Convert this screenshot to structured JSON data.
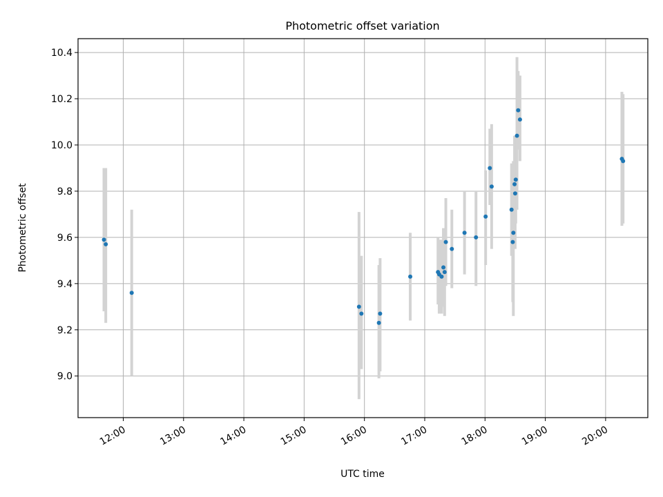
{
  "chart_data": {
    "type": "scatter",
    "title": "Photometric offset variation",
    "xlabel": "UTC time",
    "ylabel": "Photometric offset",
    "grid": true,
    "xlim": [
      11.25,
      20.7
    ],
    "ylim": [
      8.82,
      10.46
    ],
    "x_ticks": [
      {
        "value": 12,
        "label": "12:00"
      },
      {
        "value": 13,
        "label": "13:00"
      },
      {
        "value": 14,
        "label": "14:00"
      },
      {
        "value": 15,
        "label": "15:00"
      },
      {
        "value": 16,
        "label": "16:00"
      },
      {
        "value": 17,
        "label": "17:00"
      },
      {
        "value": 18,
        "label": "18:00"
      },
      {
        "value": 19,
        "label": "19:00"
      },
      {
        "value": 20,
        "label": "20:00"
      }
    ],
    "y_ticks": [
      {
        "value": 9.0,
        "label": "9.0"
      },
      {
        "value": 9.2,
        "label": "9.2"
      },
      {
        "value": 9.4,
        "label": "9.4"
      },
      {
        "value": 9.6,
        "label": "9.6"
      },
      {
        "value": 9.8,
        "label": "9.8"
      },
      {
        "value": 10.0,
        "label": "10.0"
      },
      {
        "value": 10.2,
        "label": "10.2"
      },
      {
        "value": 10.4,
        "label": "10.4"
      }
    ],
    "series": [
      {
        "name": "offset",
        "marker_color": "#1f77b4",
        "errorbar_color": "#d3d3d3",
        "points": [
          {
            "x": 11.68,
            "y": 9.59,
            "lo": 9.28,
            "hi": 9.9
          },
          {
            "x": 11.71,
            "y": 9.57,
            "lo": 9.23,
            "hi": 9.9
          },
          {
            "x": 12.14,
            "y": 9.36,
            "lo": 9.0,
            "hi": 9.72
          },
          {
            "x": 15.91,
            "y": 9.3,
            "lo": 8.9,
            "hi": 9.71
          },
          {
            "x": 15.95,
            "y": 9.27,
            "lo": 9.03,
            "hi": 9.52
          },
          {
            "x": 16.24,
            "y": 9.23,
            "lo": 8.99,
            "hi": 9.48
          },
          {
            "x": 16.26,
            "y": 9.27,
            "lo": 9.02,
            "hi": 9.51
          },
          {
            "x": 16.76,
            "y": 9.43,
            "lo": 9.24,
            "hi": 9.62
          },
          {
            "x": 17.22,
            "y": 9.45,
            "lo": 9.31,
            "hi": 9.6
          },
          {
            "x": 17.24,
            "y": 9.44,
            "lo": 9.27,
            "hi": 9.59
          },
          {
            "x": 17.28,
            "y": 9.43,
            "lo": 9.27,
            "hi": 9.59
          },
          {
            "x": 17.31,
            "y": 9.47,
            "lo": 9.3,
            "hi": 9.64
          },
          {
            "x": 17.33,
            "y": 9.45,
            "lo": 9.26,
            "hi": 9.64
          },
          {
            "x": 17.35,
            "y": 9.58,
            "lo": 9.39,
            "hi": 9.77
          },
          {
            "x": 17.45,
            "y": 9.55,
            "lo": 9.38,
            "hi": 9.72
          },
          {
            "x": 17.66,
            "y": 9.62,
            "lo": 9.44,
            "hi": 9.8
          },
          {
            "x": 17.85,
            "y": 9.6,
            "lo": 9.39,
            "hi": 9.8
          },
          {
            "x": 18.01,
            "y": 9.69,
            "lo": 9.48,
            "hi": 9.89
          },
          {
            "x": 18.08,
            "y": 9.9,
            "lo": 9.74,
            "hi": 10.07
          },
          {
            "x": 18.11,
            "y": 9.82,
            "lo": 9.55,
            "hi": 10.09
          },
          {
            "x": 18.44,
            "y": 9.72,
            "lo": 9.52,
            "hi": 9.92
          },
          {
            "x": 18.46,
            "y": 9.58,
            "lo": 9.32,
            "hi": 9.85
          },
          {
            "x": 18.47,
            "y": 9.62,
            "lo": 9.26,
            "hi": 9.93
          },
          {
            "x": 18.49,
            "y": 9.83,
            "lo": 9.62,
            "hi": 10.04
          },
          {
            "x": 18.5,
            "y": 9.79,
            "lo": 9.55,
            "hi": 10.02
          },
          {
            "x": 18.51,
            "y": 9.85,
            "lo": 9.66,
            "hi": 10.04
          },
          {
            "x": 18.53,
            "y": 10.04,
            "lo": 9.72,
            "hi": 10.38
          },
          {
            "x": 18.55,
            "y": 10.15,
            "lo": 9.98,
            "hi": 10.32
          },
          {
            "x": 18.58,
            "y": 10.11,
            "lo": 9.93,
            "hi": 10.3
          },
          {
            "x": 20.27,
            "y": 9.94,
            "lo": 9.65,
            "hi": 10.23
          },
          {
            "x": 20.29,
            "y": 9.93,
            "lo": 9.66,
            "hi": 10.22
          }
        ]
      }
    ]
  }
}
